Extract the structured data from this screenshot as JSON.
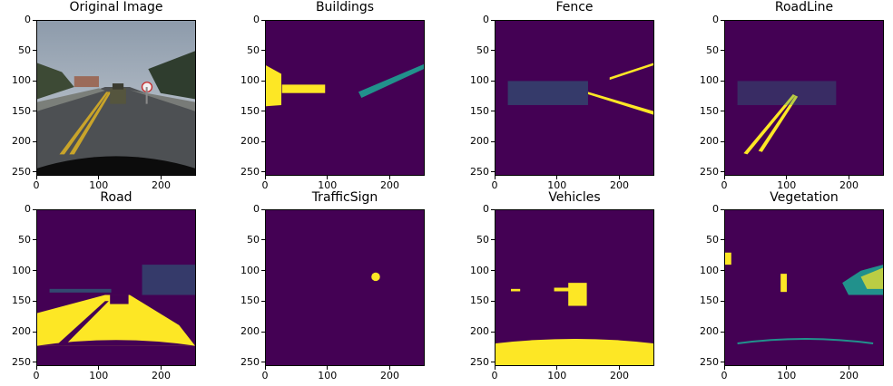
{
  "colors": {
    "background": "#440154",
    "foreground": "#fde725",
    "edge": "#21918c",
    "axes": "#000000"
  },
  "panels": [
    {
      "title": "Original Image",
      "kind": "photo"
    },
    {
      "title": "Buildings",
      "kind": "mask"
    },
    {
      "title": "Fence",
      "kind": "mask"
    },
    {
      "title": "RoadLine",
      "kind": "mask"
    },
    {
      "title": "Road",
      "kind": "mask"
    },
    {
      "title": "TrafficSign",
      "kind": "mask"
    },
    {
      "title": "Vehicles",
      "kind": "mask"
    },
    {
      "title": "Vegetation",
      "kind": "mask"
    }
  ],
  "chart_data": {
    "type": "heatmap",
    "layout": "2x4 grid of image panels",
    "xlim": [
      0,
      256
    ],
    "ylim": [
      256,
      0
    ],
    "xticks": [
      0,
      100,
      200
    ],
    "yticks": [
      0,
      50,
      100,
      150,
      200,
      250
    ],
    "colormap": "viridis",
    "value_range": [
      0,
      1
    ]
  }
}
